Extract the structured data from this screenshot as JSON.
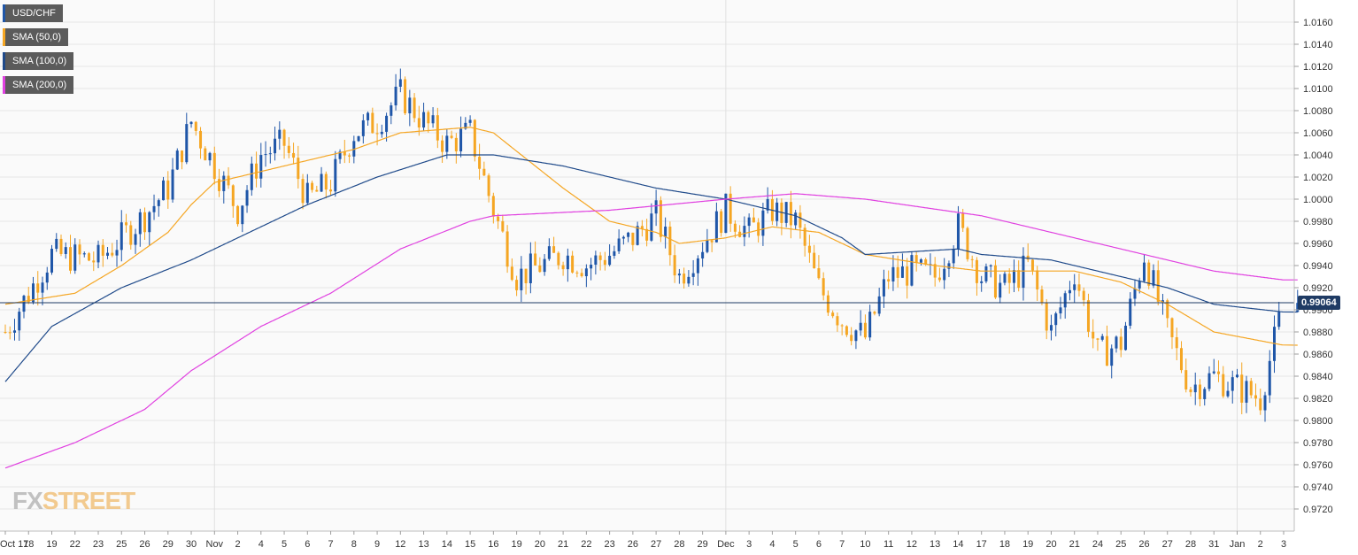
{
  "legend": {
    "instrument": "USD/CHF",
    "sma50": "SMA (50,0)",
    "sma100": "SMA (100,0)",
    "sma200": "SMA (200,0)"
  },
  "watermark": {
    "fx": "FX",
    "street": "STREET"
  },
  "last_price_label": "0.99064",
  "colors": {
    "bull_candle": "#1f56a8",
    "bear_candle": "#f5a623",
    "sma50": "#f5a623",
    "sma100": "#1f4a8a",
    "sma200": "#e040e0",
    "price_line": "#1f3b64",
    "grid": "#e6e6e6"
  },
  "chart_data": {
    "type": "candlestick",
    "instrument": "USD/CHF",
    "timeframe": "1 hour",
    "ylim": [
      0.97,
      1.018
    ],
    "y_ticks": [
      "1.0160",
      "1.0140",
      "1.0120",
      "1.0100",
      "1.0080",
      "1.0060",
      "1.0040",
      "1.0020",
      "1.0000",
      "0.9980",
      "0.9960",
      "0.9940",
      "0.9920",
      "0.9900",
      "0.9880",
      "0.9860",
      "0.9840",
      "0.9820",
      "0.9800",
      "0.9780",
      "0.9760",
      "0.9740",
      "0.9720"
    ],
    "x_ticks": [
      "Oct 17",
      "18",
      "19",
      "22",
      "23",
      "25",
      "26",
      "29",
      "30",
      "Nov",
      "2",
      "4",
      "5",
      "6",
      "7",
      "8",
      "9",
      "12",
      "13",
      "14",
      "15",
      "16",
      "19",
      "20",
      "21",
      "22",
      "23",
      "26",
      "27",
      "28",
      "29",
      "Dec",
      "3",
      "4",
      "5",
      "6",
      "7",
      "10",
      "11",
      "12",
      "13",
      "14",
      "17",
      "18",
      "19",
      "20",
      "21",
      "24",
      "25",
      "26",
      "27",
      "28",
      "31",
      "Jan",
      "2",
      "3"
    ],
    "last_price": 0.99064,
    "close_points": [
      {
        "x": "Oct 17",
        "y": 0.988
      },
      {
        "x": "19",
        "y": 0.995
      },
      {
        "x": "23",
        "y": 0.9945
      },
      {
        "x": "26",
        "y": 0.9985
      },
      {
        "x": "29",
        "y": 1.001
      },
      {
        "x": "30",
        "y": 1.007
      },
      {
        "x": "Nov",
        "y": 1.003
      },
      {
        "x": "2",
        "y": 0.999
      },
      {
        "x": "4",
        "y": 1.004
      },
      {
        "x": "5",
        "y": 1.005
      },
      {
        "x": "6",
        "y": 1.0
      },
      {
        "x": "7",
        "y": 1.0015
      },
      {
        "x": "8",
        "y": 1.006
      },
      {
        "x": "9",
        "y": 1.007
      },
      {
        "x": "12",
        "y": 1.0095
      },
      {
        "x": "13",
        "y": 1.007
      },
      {
        "x": "14",
        "y": 1.005
      },
      {
        "x": "15",
        "y": 1.006
      },
      {
        "x": "16",
        "y": 0.999
      },
      {
        "x": "19",
        "y": 0.993
      },
      {
        "x": "20",
        "y": 0.994
      },
      {
        "x": "21",
        "y": 0.995
      },
      {
        "x": "22",
        "y": 0.994
      },
      {
        "x": "23",
        "y": 0.995
      },
      {
        "x": "26",
        "y": 0.9965
      },
      {
        "x": "27",
        "y": 0.9985
      },
      {
        "x": "28",
        "y": 0.993
      },
      {
        "x": "29",
        "y": 0.996
      },
      {
        "x": "Dec",
        "y": 0.999
      },
      {
        "x": "3",
        "y": 0.997
      },
      {
        "x": "4",
        "y": 0.999
      },
      {
        "x": "5",
        "y": 0.998
      },
      {
        "x": "6",
        "y": 0.992
      },
      {
        "x": "7",
        "y": 0.989
      },
      {
        "x": "10",
        "y": 0.9875
      },
      {
        "x": "11",
        "y": 0.993
      },
      {
        "x": "12",
        "y": 0.9935
      },
      {
        "x": "13",
        "y": 0.993
      },
      {
        "x": "14",
        "y": 0.9975
      },
      {
        "x": "17",
        "y": 0.993
      },
      {
        "x": "18",
        "y": 0.992
      },
      {
        "x": "19",
        "y": 0.994
      },
      {
        "x": "20",
        "y": 0.988
      },
      {
        "x": "21",
        "y": 0.9935
      },
      {
        "x": "24",
        "y": 0.986
      },
      {
        "x": "25",
        "y": 0.987
      },
      {
        "x": "26",
        "y": 0.995
      },
      {
        "x": "27",
        "y": 0.988
      },
      {
        "x": "28",
        "y": 0.983
      },
      {
        "x": "31",
        "y": 0.984
      },
      {
        "x": "Jan",
        "y": 0.983
      },
      {
        "x": "2",
        "y": 0.982
      },
      {
        "x": "3",
        "y": 0.9906
      }
    ],
    "series": [
      {
        "name": "SMA (50,0)",
        "points": [
          {
            "x": "Oct 17",
            "y": 0.9905
          },
          {
            "x": "22",
            "y": 0.9915
          },
          {
            "x": "25",
            "y": 0.994
          },
          {
            "x": "29",
            "y": 0.997
          },
          {
            "x": "30",
            "y": 0.9995
          },
          {
            "x": "Nov",
            "y": 1.0015
          },
          {
            "x": "4",
            "y": 1.0025
          },
          {
            "x": "6",
            "y": 1.0035
          },
          {
            "x": "8",
            "y": 1.0045
          },
          {
            "x": "12",
            "y": 1.006
          },
          {
            "x": "15",
            "y": 1.0065
          },
          {
            "x": "16",
            "y": 1.006
          },
          {
            "x": "21",
            "y": 1.001
          },
          {
            "x": "23",
            "y": 0.998
          },
          {
            "x": "27",
            "y": 0.997
          },
          {
            "x": "28",
            "y": 0.996
          },
          {
            "x": "Dec",
            "y": 0.9965
          },
          {
            "x": "4",
            "y": 0.9975
          },
          {
            "x": "6",
            "y": 0.997
          },
          {
            "x": "10",
            "y": 0.995
          },
          {
            "x": "13",
            "y": 0.994
          },
          {
            "x": "17",
            "y": 0.9935
          },
          {
            "x": "19",
            "y": 0.9935
          },
          {
            "x": "21",
            "y": 0.9935
          },
          {
            "x": "25",
            "y": 0.9925
          },
          {
            "x": "27",
            "y": 0.9905
          },
          {
            "x": "31",
            "y": 0.988
          },
          {
            "x": "3",
            "y": 0.9868
          }
        ]
      },
      {
        "name": "SMA (100,0)",
        "points": [
          {
            "x": "Oct 17",
            "y": 0.9835
          },
          {
            "x": "19",
            "y": 0.9885
          },
          {
            "x": "25",
            "y": 0.992
          },
          {
            "x": "30",
            "y": 0.9945
          },
          {
            "x": "2",
            "y": 0.9965
          },
          {
            "x": "6",
            "y": 0.9995
          },
          {
            "x": "9",
            "y": 1.002
          },
          {
            "x": "14",
            "y": 1.004
          },
          {
            "x": "16",
            "y": 1.004
          },
          {
            "x": "21",
            "y": 1.003
          },
          {
            "x": "27",
            "y": 1.001
          },
          {
            "x": "Dec",
            "y": 1.0
          },
          {
            "x": "5",
            "y": 0.9985
          },
          {
            "x": "7",
            "y": 0.9965
          },
          {
            "x": "10",
            "y": 0.995
          },
          {
            "x": "14",
            "y": 0.9955
          },
          {
            "x": "17",
            "y": 0.995
          },
          {
            "x": "20",
            "y": 0.9945
          },
          {
            "x": "24",
            "y": 0.9935
          },
          {
            "x": "27",
            "y": 0.992
          },
          {
            "x": "31",
            "y": 0.9905
          },
          {
            "x": "3",
            "y": 0.9898
          }
        ]
      },
      {
        "name": "SMA (200,0)",
        "points": [
          {
            "x": "Oct 17",
            "y": 0.9757
          },
          {
            "x": "22",
            "y": 0.978
          },
          {
            "x": "26",
            "y": 0.981
          },
          {
            "x": "30",
            "y": 0.9845
          },
          {
            "x": "4",
            "y": 0.9885
          },
          {
            "x": "7",
            "y": 0.9915
          },
          {
            "x": "12",
            "y": 0.9955
          },
          {
            "x": "15",
            "y": 0.998
          },
          {
            "x": "16",
            "y": 0.9985
          },
          {
            "x": "23",
            "y": 0.999
          },
          {
            "x": "Dec",
            "y": 1.0
          },
          {
            "x": "5",
            "y": 1.0005
          },
          {
            "x": "10",
            "y": 1.0
          },
          {
            "x": "17",
            "y": 0.9985
          },
          {
            "x": "24",
            "y": 0.996
          },
          {
            "x": "31",
            "y": 0.9935
          },
          {
            "x": "3",
            "y": 0.9927
          }
        ]
      }
    ]
  }
}
